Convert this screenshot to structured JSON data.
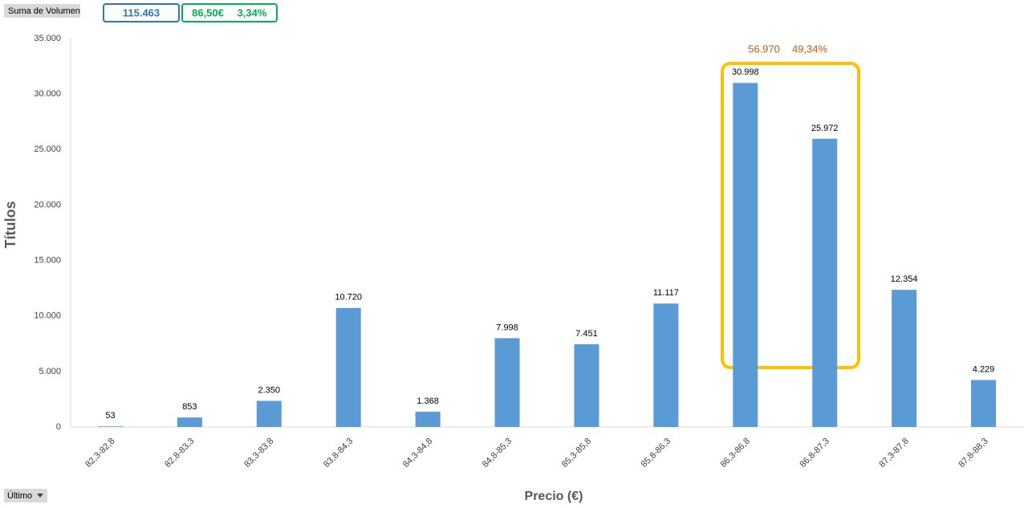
{
  "chart_data": {
    "type": "bar",
    "field_button": "Suma de Volumen",
    "filter_button": "Último",
    "summary": [
      "115.463",
      "86,50€",
      "3,34%"
    ],
    "highlight_labels": [
      "56.970",
      "49,34%"
    ],
    "x_label": "Precio (€)",
    "y_label": "Títulos",
    "categories": [
      "82,3-82,8",
      "82,8-83,3",
      "83,3-83,8",
      "83,8-84,3",
      "84,3-84,8",
      "84,8-85,3",
      "85,3-85,8",
      "85,8-86,3",
      "86,3-86,8",
      "86,8-87,3",
      "87,3-87,8",
      "87,8-88,3"
    ],
    "values": [
      53,
      853,
      2350,
      10720,
      1368,
      7998,
      7451,
      11117,
      30998,
      25972,
      12354,
      4229
    ],
    "value_labels": [
      "53",
      "853",
      "2.350",
      "10.720",
      "1.368",
      "7.998",
      "7.451",
      "11.117",
      "30.998",
      "25.972",
      "12.354",
      "4.229"
    ],
    "color": "#5b9bd5",
    "ylim": [
      0,
      35000
    ],
    "yticks": [
      0,
      {
        "value": 5000,
        "label": "5.000"
      },
      {
        "value": 10000,
        "label": "10.000"
      },
      {
        "value": 15000,
        "label": "15.000"
      },
      {
        "value": 20000,
        "label": "20.000"
      },
      {
        "value": 25000,
        "label": "25.000"
      },
      {
        "value": 30000,
        "label": "30.000"
      },
      {
        "value": 35000,
        "label": "35.000"
      }
    ],
    "grid": false
  }
}
